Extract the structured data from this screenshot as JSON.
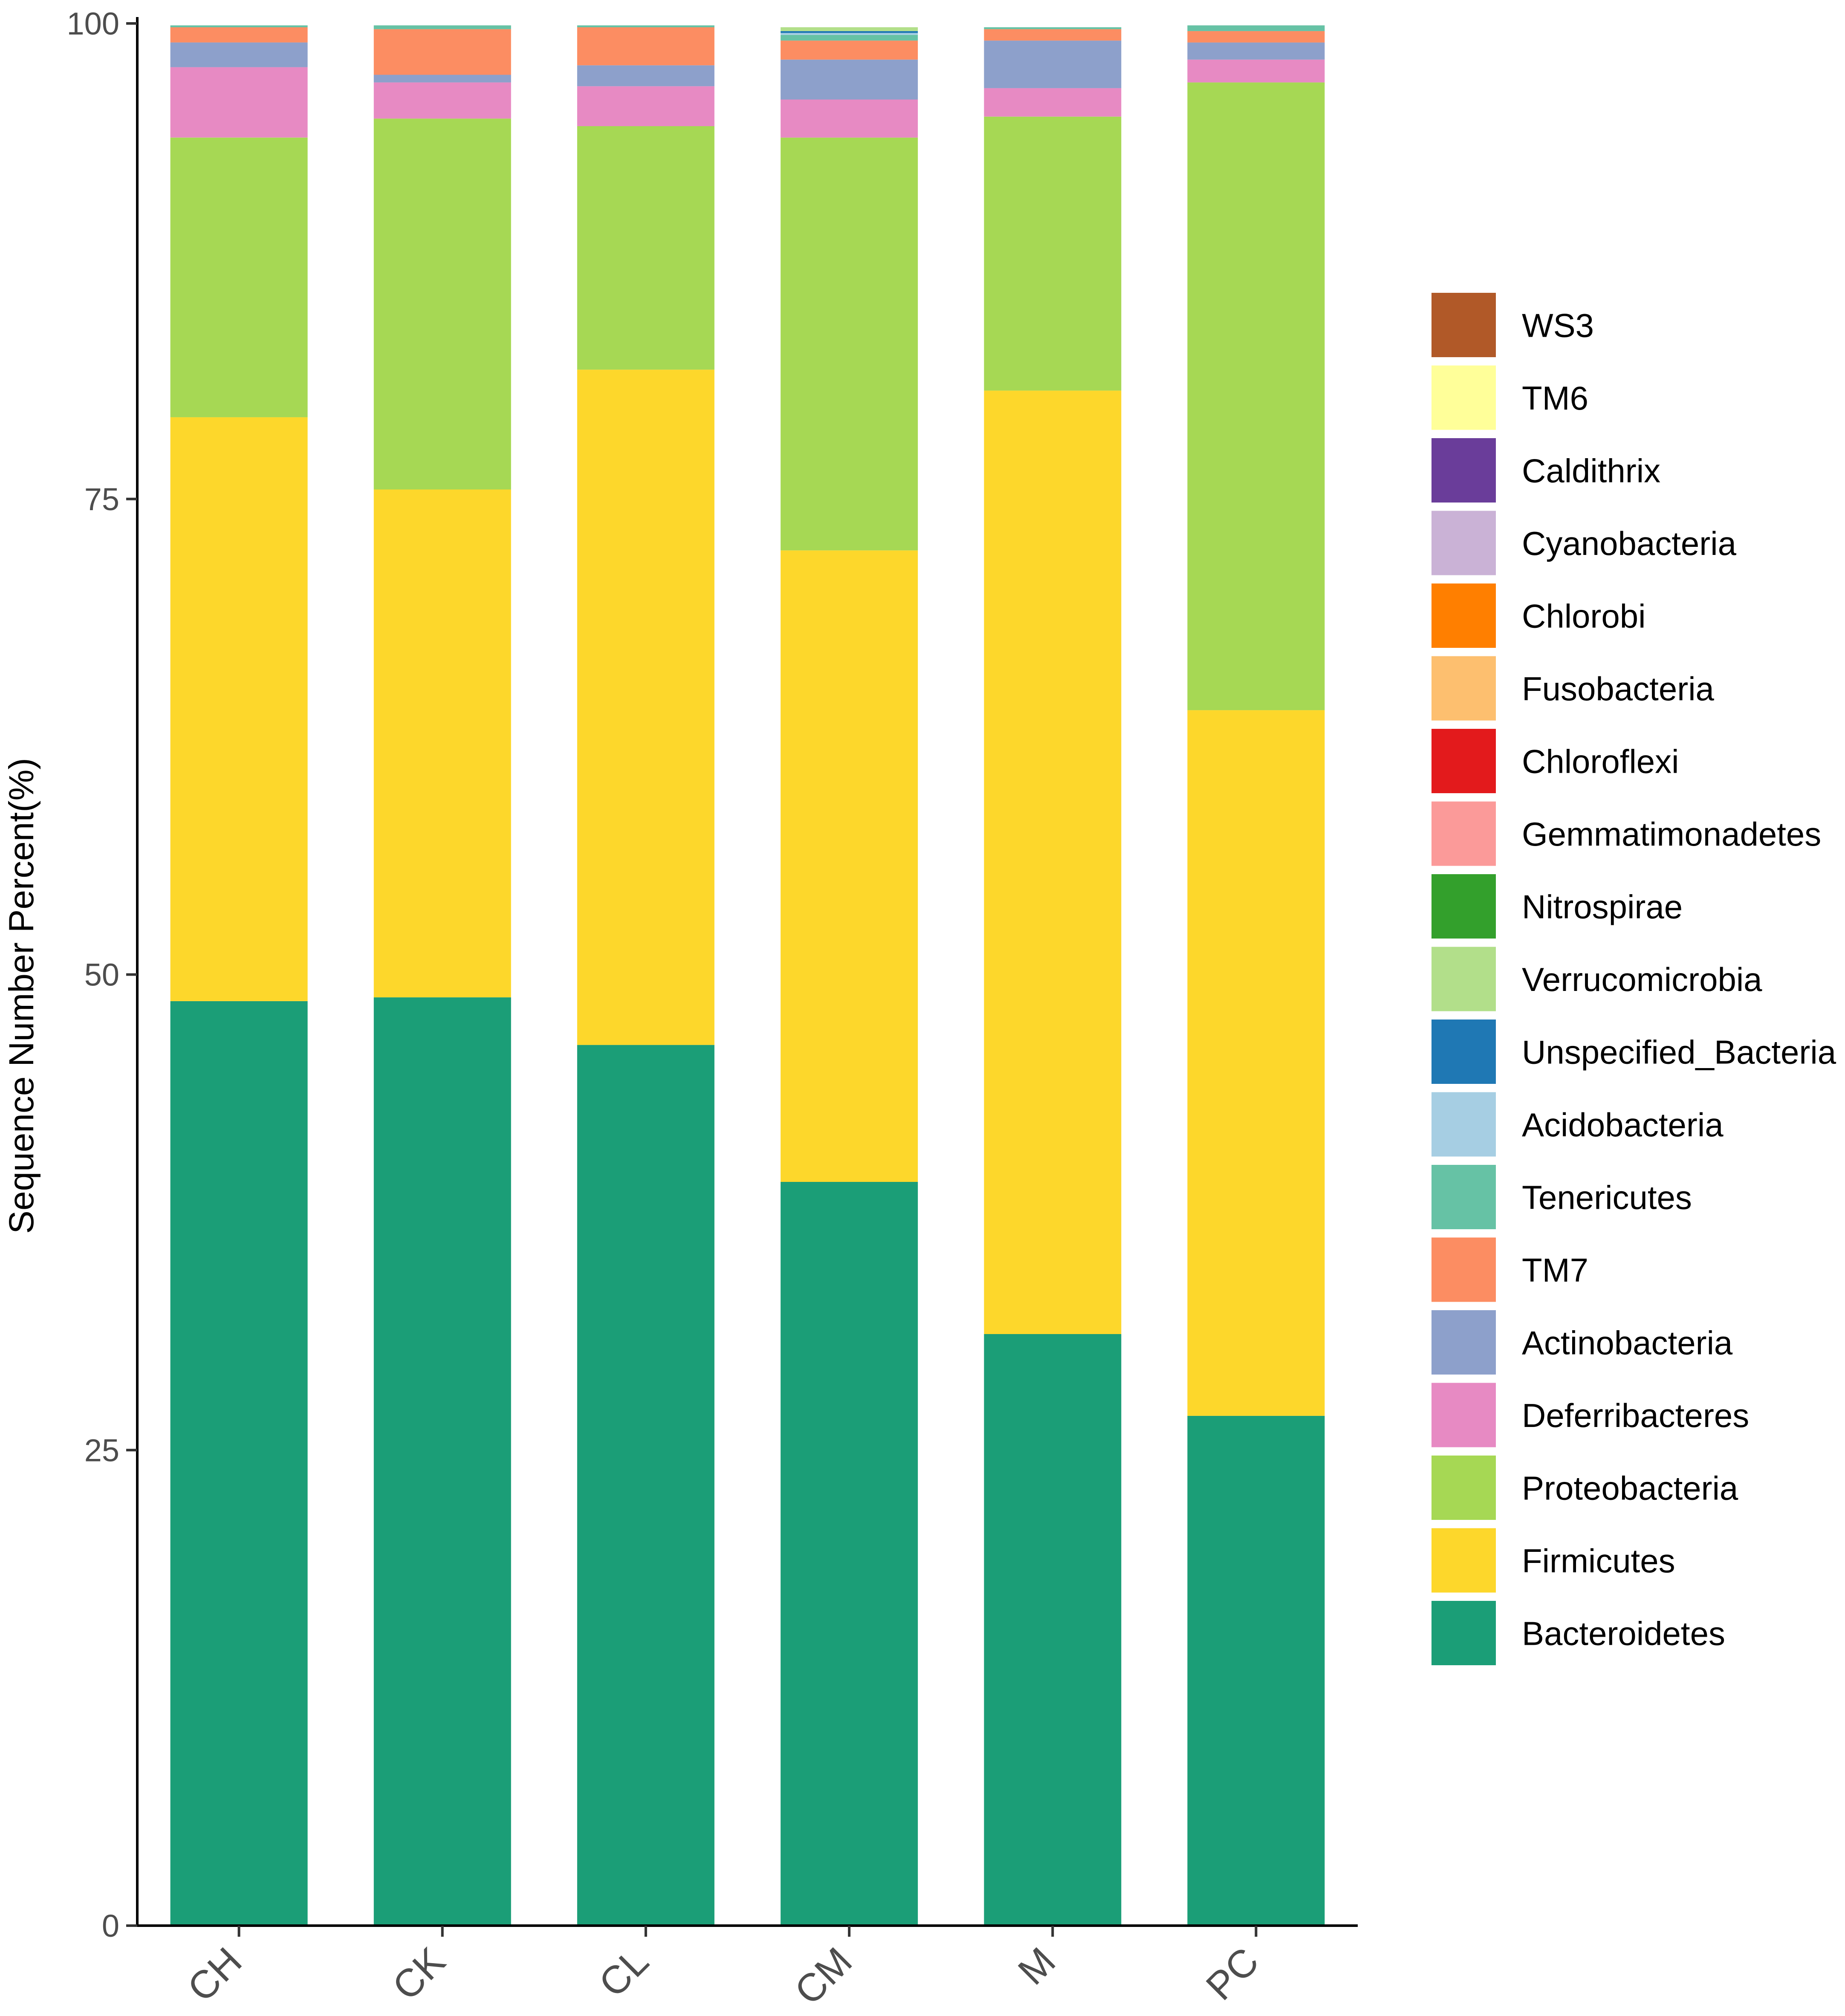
{
  "chart_data": {
    "type": "bar",
    "stacked": true,
    "title": "",
    "xlabel": "",
    "ylabel": "Sequence Number Percent(%)",
    "ylim": [
      0,
      100
    ],
    "yticks": [
      0,
      25,
      50,
      75,
      100
    ],
    "grid": false,
    "legend_position": "right",
    "categories": [
      "CH",
      "CK",
      "CL",
      "CM",
      "M",
      "PC"
    ],
    "series": [
      {
        "name": "Bacteroidetes",
        "color": "#1b9e77",
        "values": [
          48.6,
          48.8,
          46.3,
          39.1,
          31.1,
          26.8
        ]
      },
      {
        "name": "Firmicutes",
        "color": "#fdd72b",
        "values": [
          30.7,
          26.7,
          35.5,
          33.2,
          49.6,
          37.1
        ]
      },
      {
        "name": "Proteobacteria",
        "color": "#a6d854",
        "values": [
          14.7,
          19.5,
          12.8,
          21.7,
          14.4,
          33.0
        ]
      },
      {
        "name": "Deferribacteres",
        "color": "#e78ac3",
        "values": [
          3.7,
          1.9,
          2.1,
          2.0,
          1.5,
          1.2
        ]
      },
      {
        "name": "Actinobacteria",
        "color": "#8da0cb",
        "values": [
          1.3,
          0.4,
          1.1,
          2.1,
          2.5,
          0.9
        ]
      },
      {
        "name": "TM7",
        "color": "#fc8d62",
        "values": [
          0.8,
          2.4,
          2.0,
          1.0,
          0.6,
          0.6
        ]
      },
      {
        "name": "Tenericutes",
        "color": "#66c2a5",
        "values": [
          0.1,
          0.2,
          0.1,
          0.3,
          0.1,
          0.3
        ]
      },
      {
        "name": "Acidobacteria",
        "color": "#a6cee3",
        "values": [
          0.0,
          0.0,
          0.0,
          0.1,
          0.0,
          0.0
        ]
      },
      {
        "name": "Unspecified_Bacteria",
        "color": "#1f78b4",
        "values": [
          0.0,
          0.0,
          0.0,
          0.1,
          0.0,
          0.0
        ]
      },
      {
        "name": "Verrucomicrobia",
        "color": "#b2df8a",
        "values": [
          0.0,
          0.0,
          0.0,
          0.2,
          0.0,
          0.0
        ]
      },
      {
        "name": "Nitrospirae",
        "color": "#33a02c",
        "values": [
          0.0,
          0.0,
          0.0,
          0.0,
          0.0,
          0.0
        ]
      },
      {
        "name": "Gemmatimonadetes",
        "color": "#fb9a99",
        "values": [
          0.0,
          0.0,
          0.0,
          0.0,
          0.0,
          0.0
        ]
      },
      {
        "name": "Chloroflexi",
        "color": "#e31a1c",
        "values": [
          0.0,
          0.0,
          0.0,
          0.0,
          0.0,
          0.0
        ]
      },
      {
        "name": "Fusobacteria",
        "color": "#fdbf6f",
        "values": [
          0.0,
          0.0,
          0.0,
          0.0,
          0.0,
          0.0
        ]
      },
      {
        "name": "Chlorobi",
        "color": "#ff7f00",
        "values": [
          0.0,
          0.0,
          0.0,
          0.0,
          0.0,
          0.0
        ]
      },
      {
        "name": "Cyanobacteria",
        "color": "#cab2d6",
        "values": [
          0.0,
          0.0,
          0.0,
          0.0,
          0.0,
          0.0
        ]
      },
      {
        "name": "Caldithrix",
        "color": "#6a3d9a",
        "values": [
          0.0,
          0.0,
          0.0,
          0.0,
          0.0,
          0.0
        ]
      },
      {
        "name": "TM6",
        "color": "#ffff99",
        "values": [
          0.0,
          0.0,
          0.0,
          0.0,
          0.0,
          0.0
        ]
      },
      {
        "name": "WS3",
        "color": "#b15928",
        "values": [
          0.0,
          0.0,
          0.0,
          0.0,
          0.0,
          0.0
        ]
      }
    ]
  }
}
